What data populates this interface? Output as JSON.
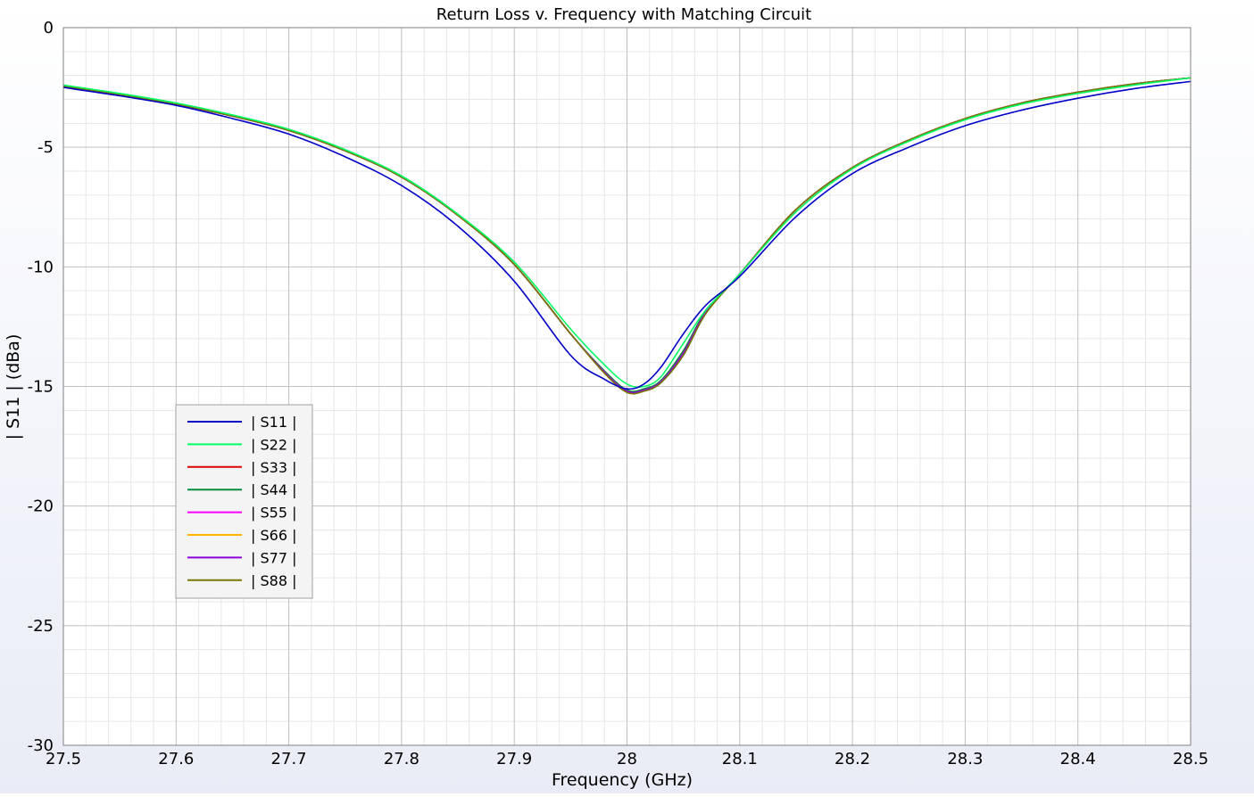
{
  "chart_data": {
    "type": "line",
    "title": "Return Loss v. Frequency with Matching Circuit",
    "xlabel": "Frequency (GHz)",
    "ylabel": "| S11 | (dBa)",
    "xlim": [
      27.5,
      28.5
    ],
    "ylim": [
      -30,
      0
    ],
    "x_ticks": [
      "27.5",
      "27.6",
      "27.7",
      "27.8",
      "27.9",
      "28",
      "28.1",
      "28.2",
      "28.3",
      "28.4",
      "28.5"
    ],
    "y_ticks": [
      "0",
      "-5",
      "-10",
      "-15",
      "-20",
      "-25",
      "-30"
    ],
    "grid": true,
    "legend_position": "lower-left",
    "x": [
      27.5,
      27.55,
      27.6,
      27.65,
      27.7,
      27.75,
      27.8,
      27.85,
      27.9,
      27.95,
      27.98,
      28.0,
      28.015,
      28.03,
      28.05,
      28.07,
      28.1,
      28.15,
      28.2,
      28.25,
      28.3,
      28.35,
      28.4,
      28.45,
      28.5
    ],
    "series": [
      {
        "name": "| S11 |",
        "color": "#0000c8",
        "values": [
          -2.5,
          -2.85,
          -3.25,
          -3.8,
          -4.45,
          -5.4,
          -6.6,
          -8.3,
          -10.6,
          -13.7,
          -14.7,
          -15.1,
          -14.9,
          -14.2,
          -12.8,
          -11.6,
          -10.4,
          -7.9,
          -6.1,
          -5.0,
          -4.1,
          -3.45,
          -2.95,
          -2.55,
          -2.25
        ]
      },
      {
        "name": "| S22 |",
        "color": "#00ff64",
        "values": [
          -2.4,
          -2.75,
          -3.15,
          -3.65,
          -4.25,
          -5.1,
          -6.2,
          -7.8,
          -9.8,
          -12.6,
          -14.1,
          -14.9,
          -15.0,
          -14.6,
          -13.2,
          -11.8,
          -10.3,
          -7.7,
          -5.9,
          -4.75,
          -3.85,
          -3.2,
          -2.75,
          -2.4,
          -2.1
        ]
      },
      {
        "name": "| S33 |",
        "color": "#dc0000",
        "values": [
          -2.45,
          -2.8,
          -3.2,
          -3.7,
          -4.3,
          -5.15,
          -6.25,
          -7.85,
          -9.9,
          -12.8,
          -14.4,
          -15.2,
          -15.15,
          -14.8,
          -13.6,
          -11.9,
          -10.3,
          -7.6,
          -5.85,
          -4.7,
          -3.8,
          -3.15,
          -2.7,
          -2.35,
          -2.1
        ]
      },
      {
        "name": "| S44 |",
        "color": "#008c3c",
        "values": [
          -2.45,
          -2.8,
          -3.2,
          -3.7,
          -4.3,
          -5.15,
          -6.25,
          -7.85,
          -9.9,
          -12.8,
          -14.35,
          -15.15,
          -15.1,
          -14.75,
          -13.5,
          -11.85,
          -10.3,
          -7.6,
          -5.85,
          -4.7,
          -3.8,
          -3.15,
          -2.7,
          -2.35,
          -2.1
        ]
      },
      {
        "name": "| S55 |",
        "color": "#ff00ff",
        "values": [
          -2.45,
          -2.8,
          -3.2,
          -3.7,
          -4.3,
          -5.15,
          -6.25,
          -7.85,
          -9.9,
          -12.8,
          -14.4,
          -15.2,
          -15.15,
          -14.8,
          -13.6,
          -11.9,
          -10.3,
          -7.6,
          -5.85,
          -4.7,
          -3.8,
          -3.15,
          -2.7,
          -2.35,
          -2.1
        ]
      },
      {
        "name": "| S66 |",
        "color": "#ffb400",
        "values": [
          -2.45,
          -2.8,
          -3.2,
          -3.7,
          -4.3,
          -5.15,
          -6.25,
          -7.85,
          -9.9,
          -12.8,
          -14.4,
          -15.2,
          -15.15,
          -14.8,
          -13.6,
          -11.9,
          -10.3,
          -7.6,
          -5.85,
          -4.7,
          -3.8,
          -3.15,
          -2.7,
          -2.35,
          -2.1
        ]
      },
      {
        "name": "| S77 |",
        "color": "#8c00dc",
        "values": [
          -2.45,
          -2.8,
          -3.2,
          -3.7,
          -4.3,
          -5.15,
          -6.25,
          -7.85,
          -9.9,
          -12.8,
          -14.4,
          -15.2,
          -15.15,
          -14.8,
          -13.6,
          -11.9,
          -10.3,
          -7.6,
          -5.85,
          -4.7,
          -3.8,
          -3.15,
          -2.7,
          -2.35,
          -2.1
        ]
      },
      {
        "name": "| S88 |",
        "color": "#787800",
        "values": [
          -2.45,
          -2.8,
          -3.2,
          -3.7,
          -4.3,
          -5.15,
          -6.25,
          -7.85,
          -9.9,
          -12.8,
          -14.45,
          -15.25,
          -15.2,
          -14.85,
          -13.7,
          -11.95,
          -10.3,
          -7.6,
          -5.85,
          -4.7,
          -3.8,
          -3.15,
          -2.7,
          -2.35,
          -2.1
        ]
      }
    ]
  }
}
